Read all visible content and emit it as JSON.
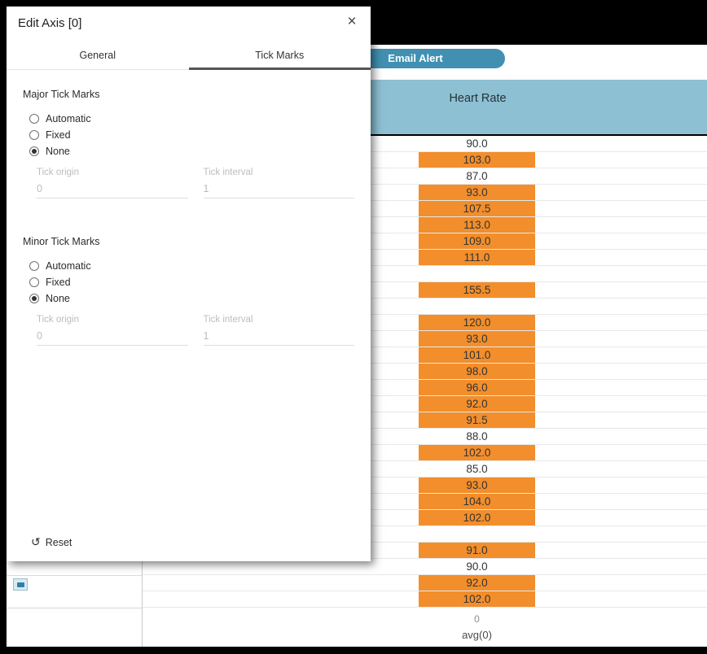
{
  "dialog": {
    "title": "Edit Axis [0]",
    "icons": {
      "close": "×",
      "reset": "↺"
    },
    "tabs": [
      {
        "label": "General",
        "active": false
      },
      {
        "label": "Tick Marks",
        "active": true
      }
    ],
    "major": {
      "heading": "Major Tick Marks",
      "options": [
        "Automatic",
        "Fixed",
        "None"
      ],
      "selected": "None",
      "origin_label": "Tick origin",
      "origin_value": "0",
      "interval_label": "Tick interval",
      "interval_value": "1"
    },
    "minor": {
      "heading": "Minor Tick Marks",
      "options": [
        "Automatic",
        "Fixed",
        "None"
      ],
      "selected": "None",
      "origin_label": "Tick origin",
      "origin_value": "0",
      "interval_label": "Tick interval",
      "interval_value": "1"
    },
    "reset_label": "Reset"
  },
  "worksheet": {
    "alert_button_label": "Email Alert",
    "column_header": "Heart Rate",
    "rows": [
      {
        "value": "90.0",
        "bar": false
      },
      {
        "value": "103.0",
        "bar": true
      },
      {
        "value": "87.0",
        "bar": false
      },
      {
        "value": "93.0",
        "bar": true
      },
      {
        "value": "107.5",
        "bar": true
      },
      {
        "value": "113.0",
        "bar": true
      },
      {
        "value": "109.0",
        "bar": true
      },
      {
        "value": "111.0",
        "bar": true
      },
      {
        "value": "",
        "bar": false
      },
      {
        "value": "155.5",
        "bar": true
      },
      {
        "value": "",
        "bar": false
      },
      {
        "value": "120.0",
        "bar": true
      },
      {
        "value": "93.0",
        "bar": true
      },
      {
        "value": "101.0",
        "bar": true
      },
      {
        "value": "98.0",
        "bar": true
      },
      {
        "value": "96.0",
        "bar": true
      },
      {
        "value": "92.0",
        "bar": true
      },
      {
        "value": "91.5",
        "bar": true
      },
      {
        "value": "88.0",
        "bar": false
      },
      {
        "value": "102.0",
        "bar": true
      },
      {
        "value": "85.0",
        "bar": false
      },
      {
        "value": "93.0",
        "bar": true
      },
      {
        "value": "104.0",
        "bar": true
      },
      {
        "value": "102.0",
        "bar": true
      },
      {
        "value": "",
        "bar": false
      },
      {
        "value": "91.0",
        "bar": true
      },
      {
        "value": "90.0",
        "bar": false
      },
      {
        "value": "92.0",
        "bar": true
      },
      {
        "value": "102.0",
        "bar": true
      }
    ],
    "axis_zero_label": "0",
    "axis_title": "avg(0)"
  },
  "colors": {
    "bar_orange": "#F28E2B",
    "header_blue": "#8CC0D2",
    "alert_pill_blue": "#4190B2"
  }
}
